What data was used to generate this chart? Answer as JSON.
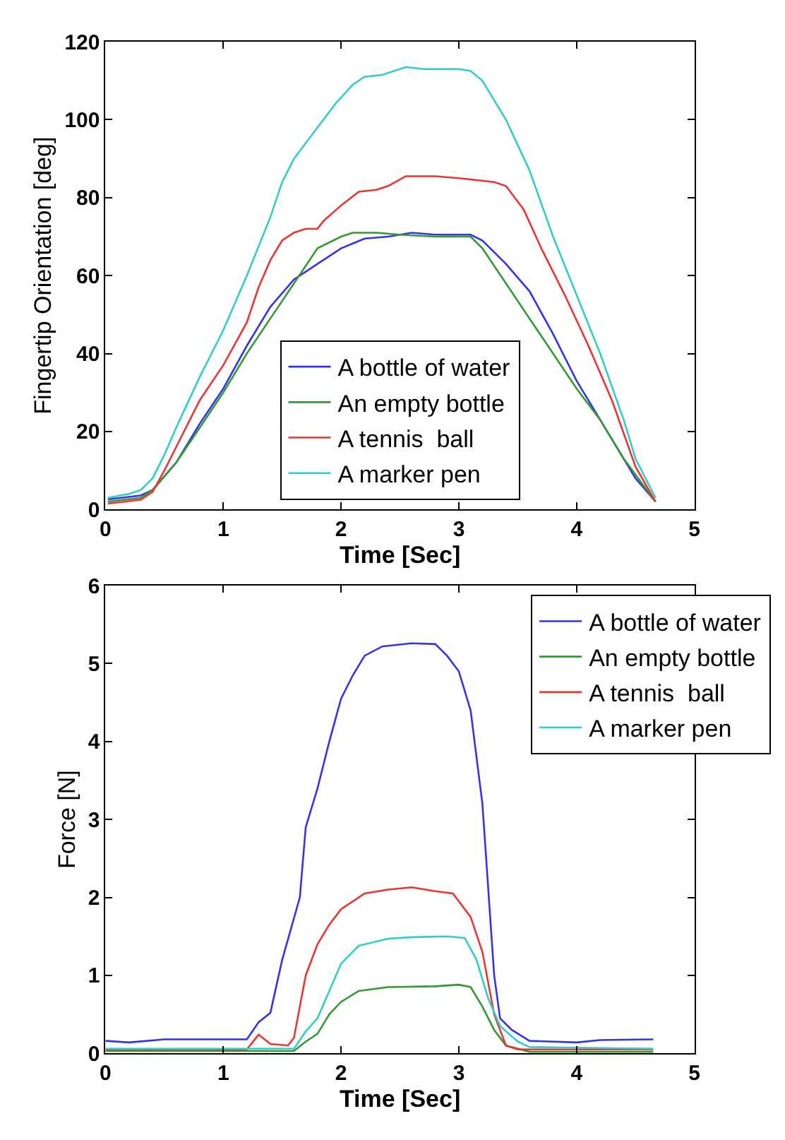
{
  "chart_data": [
    {
      "type": "line",
      "xlabel": "Time [Sec]",
      "ylabel": "Fingertip Orientation [deg]",
      "xlim": [
        0,
        5
      ],
      "xticks": [
        0,
        1,
        2,
        3,
        4,
        5
      ],
      "ylim": [
        0,
        120
      ],
      "yticks": [
        0,
        20,
        40,
        60,
        80,
        100,
        120
      ],
      "legend": "bottom",
      "marker": "none",
      "line_style": "solid",
      "series": [
        {
          "name": "A bottle of water",
          "color": "#3333ee",
          "x": [
            0.02,
            0.3,
            0.4,
            0.6,
            0.8,
            1.0,
            1.2,
            1.4,
            1.6,
            1.8,
            2.0,
            2.2,
            2.4,
            2.6,
            2.8,
            3.0,
            3.1,
            3.2,
            3.4,
            3.6,
            3.8,
            4.0,
            4.2,
            4.4,
            4.5,
            4.67
          ],
          "values": [
            2.6,
            3.6,
            5,
            12,
            22,
            31,
            42,
            52,
            59,
            63,
            67,
            69.5,
            70,
            71,
            70.5,
            70.5,
            70.5,
            69,
            63,
            56,
            45,
            33,
            23,
            13,
            8,
            2
          ]
        },
        {
          "name": "An empty bottle",
          "color": "#339933",
          "x": [
            0.02,
            0.3,
            0.4,
            0.6,
            0.8,
            1.0,
            1.2,
            1.4,
            1.6,
            1.8,
            2.0,
            2.1,
            2.3,
            2.5,
            2.8,
            3.1,
            3.2,
            3.4,
            3.6,
            3.8,
            4.0,
            4.2,
            4.4,
            4.67
          ],
          "values": [
            2,
            3,
            5,
            12,
            21,
            30,
            40,
            49,
            58,
            67,
            70,
            71,
            71,
            70.5,
            70,
            70,
            67,
            58,
            49,
            40,
            31,
            23,
            13,
            2
          ]
        },
        {
          "name": "A tennis  ball",
          "color": "#ee3333",
          "x": [
            0.02,
            0.3,
            0.4,
            0.5,
            0.6,
            0.8,
            1.0,
            1.2,
            1.3,
            1.4,
            1.5,
            1.6,
            1.7,
            1.8,
            1.85,
            2.0,
            2.15,
            2.3,
            2.4,
            2.55,
            2.8,
            3.0,
            3.3,
            3.4,
            3.55,
            3.7,
            3.9,
            4.1,
            4.3,
            4.5,
            4.67
          ],
          "values": [
            1.5,
            2.5,
            4.5,
            10,
            16,
            28,
            37,
            48,
            57,
            64,
            69,
            71,
            72,
            72,
            74,
            78,
            81.5,
            82,
            83,
            85.5,
            85.5,
            85,
            84,
            83,
            77,
            67,
            55,
            42,
            28,
            11,
            2
          ]
        },
        {
          "name": "A marker pen",
          "color": "#33cccc",
          "x": [
            0.02,
            0.2,
            0.3,
            0.4,
            0.5,
            0.6,
            0.8,
            1.0,
            1.2,
            1.4,
            1.5,
            1.6,
            1.8,
            1.95,
            2.1,
            2.2,
            2.35,
            2.55,
            2.7,
            3.0,
            3.1,
            3.2,
            3.4,
            3.6,
            3.8,
            4.0,
            4.2,
            4.4,
            4.5,
            4.67
          ],
          "values": [
            3,
            4,
            5,
            8,
            14,
            21,
            34,
            46,
            60,
            75,
            84,
            90,
            98,
            104,
            109,
            111,
            111.5,
            113.5,
            113,
            113,
            112.5,
            110,
            100,
            87,
            70,
            55,
            40,
            23,
            13,
            3
          ]
        }
      ]
    },
    {
      "type": "line",
      "xlabel": "Time [Sec]",
      "ylabel": "Force [N]",
      "xlim": [
        0,
        5
      ],
      "xticks": [
        0,
        1,
        2,
        3,
        4,
        5
      ],
      "ylim": [
        0,
        6
      ],
      "yticks": [
        0,
        1,
        2,
        3,
        4,
        5,
        6
      ],
      "legend": "top right",
      "marker": "none",
      "line_style": "solid",
      "series": [
        {
          "name": "A bottle of water",
          "color": "#3333ee",
          "x": [
            0,
            0.2,
            0.5,
            1.0,
            1.2,
            1.3,
            1.4,
            1.5,
            1.65,
            1.7,
            1.8,
            1.9,
            2.0,
            2.1,
            2.2,
            2.35,
            2.6,
            2.8,
            2.9,
            3.0,
            3.1,
            3.2,
            3.3,
            3.35,
            3.45,
            3.6,
            4.0,
            4.2,
            4.65
          ],
          "values": [
            0.16,
            0.14,
            0.18,
            0.18,
            0.18,
            0.4,
            0.52,
            1.2,
            2.0,
            2.9,
            3.4,
            4.0,
            4.55,
            4.85,
            5.1,
            5.22,
            5.26,
            5.25,
            5.1,
            4.9,
            4.4,
            3.2,
            1.0,
            0.45,
            0.3,
            0.16,
            0.14,
            0.17,
            0.18
          ]
        },
        {
          "name": "An empty bottle",
          "color": "#339933",
          "x": [
            0,
            1.6,
            1.7,
            1.8,
            1.9,
            2.0,
            2.15,
            2.4,
            2.8,
            3.0,
            3.1,
            3.2,
            3.3,
            3.4,
            3.6,
            4.65
          ],
          "values": [
            0.03,
            0.03,
            0.15,
            0.25,
            0.5,
            0.66,
            0.8,
            0.85,
            0.86,
            0.88,
            0.85,
            0.6,
            0.3,
            0.1,
            0.02,
            0.02
          ]
        },
        {
          "name": "A tennis  ball",
          "color": "#ee3333",
          "x": [
            0,
            1.2,
            1.3,
            1.4,
            1.55,
            1.6,
            1.7,
            1.8,
            1.9,
            2.0,
            2.2,
            2.4,
            2.6,
            2.8,
            2.95,
            3.1,
            3.2,
            3.3,
            3.4,
            3.5,
            4.65
          ],
          "values": [
            0.05,
            0.05,
            0.24,
            0.12,
            0.1,
            0.2,
            1.0,
            1.4,
            1.65,
            1.85,
            2.05,
            2.1,
            2.13,
            2.08,
            2.05,
            1.75,
            1.3,
            0.5,
            0.1,
            0.05,
            0.05
          ]
        },
        {
          "name": "A marker pen",
          "color": "#33cccc",
          "x": [
            0,
            1.6,
            1.7,
            1.8,
            1.9,
            2.0,
            2.15,
            2.4,
            2.6,
            2.9,
            3.05,
            3.15,
            3.25,
            3.35,
            3.5,
            3.6,
            4.65
          ],
          "values": [
            0.06,
            0.06,
            0.28,
            0.45,
            0.8,
            1.15,
            1.38,
            1.47,
            1.49,
            1.5,
            1.48,
            1.2,
            0.7,
            0.35,
            0.15,
            0.08,
            0.06
          ]
        }
      ]
    }
  ]
}
